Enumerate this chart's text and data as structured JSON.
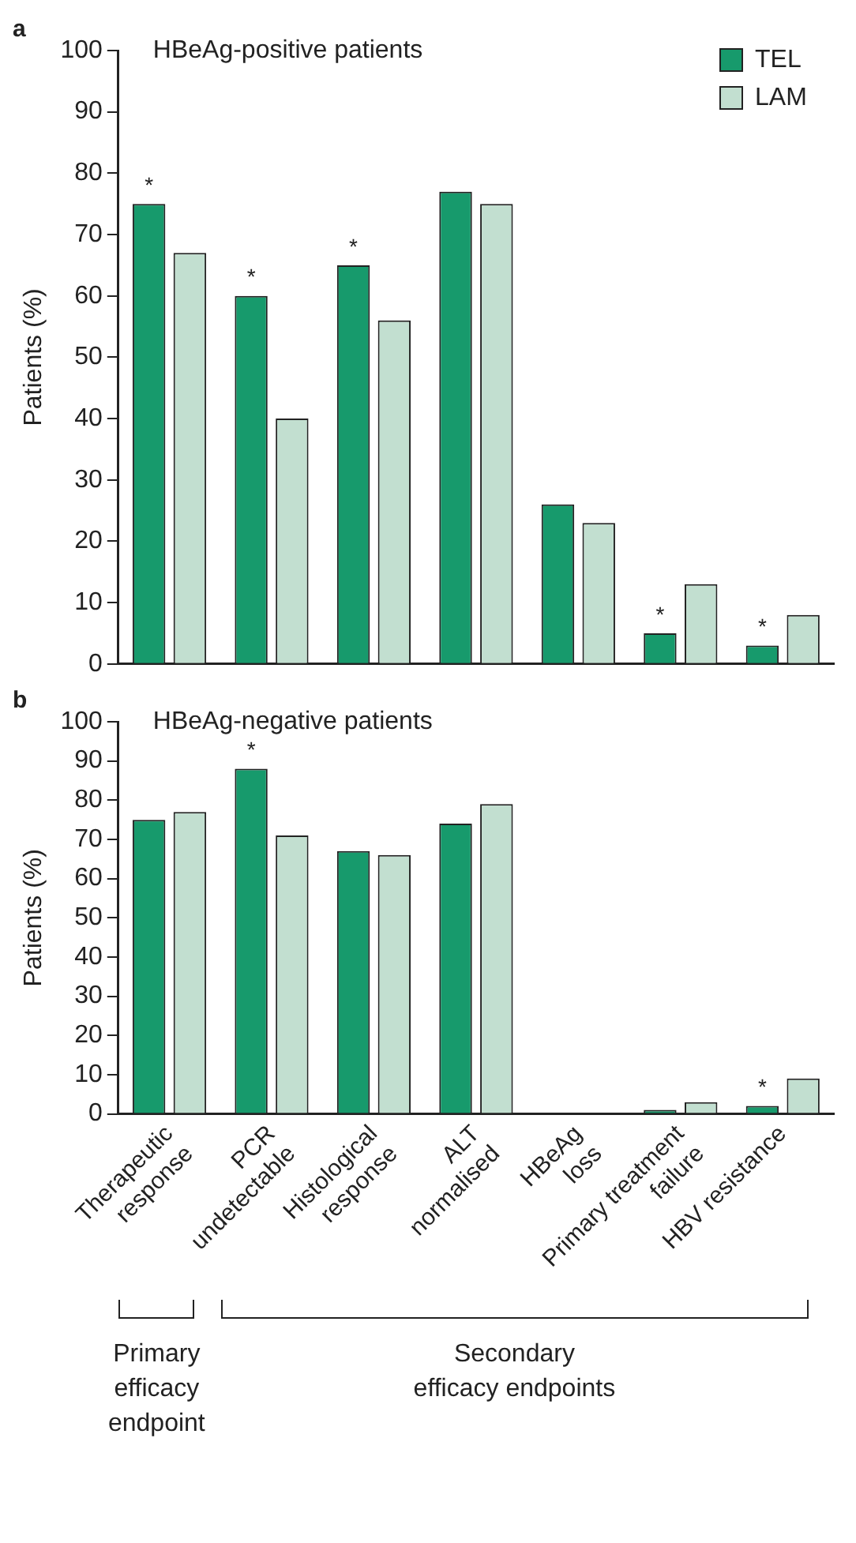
{
  "chart_data": [
    {
      "type": "bar",
      "title": "a",
      "subtitle": "HBeAg-positive patients",
      "ylabel": "Patients (%)",
      "categories": [
        null,
        null,
        null,
        null,
        null,
        null,
        null
      ],
      "series": [
        {
          "name": "TEL",
          "color": "#179a6c",
          "values": [
            75,
            60,
            65,
            77,
            26,
            5,
            3
          ]
        },
        {
          "name": "LAM",
          "color": "#c2dfd0",
          "values": [
            67,
            40,
            56,
            75,
            23,
            13,
            8
          ]
        }
      ],
      "ylim": [
        0,
        100
      ],
      "yticks": [
        0,
        10,
        20,
        30,
        40,
        50,
        60,
        70,
        80,
        90,
        100
      ],
      "grid": false,
      "legend": "top right",
      "tick_labels": "y",
      "annotations": [
        "*",
        "*",
        "*",
        "*",
        "*"
      ]
    },
    {
      "type": "bar",
      "title": "b",
      "subtitle": "HBeAg-negative patients",
      "ylabel": "Patients (%)",
      "categories": [
        "Therapeutic\nresponse",
        "PCR\nundetectable",
        "Histological\nresponse",
        "ALT\nnormalised",
        "HBeAg\nloss",
        "Primary treatment\nfailure",
        "HBV resistance"
      ],
      "series": [
        {
          "color": "#179a6c",
          "values": [
            75,
            88,
            67,
            74,
            null,
            1,
            2
          ]
        },
        {
          "color": "#c2dfd0",
          "values": [
            77,
            71,
            66,
            79,
            null,
            3,
            9
          ]
        }
      ],
      "ylim": [
        0,
        100
      ],
      "yticks": [
        0,
        10,
        20,
        30,
        40,
        50,
        60,
        70,
        80,
        90,
        100
      ],
      "grid": false,
      "legend": false,
      "annotations": [
        "*",
        "*",
        "Primary\nefficacy\nendpoint",
        "Secondary\nefficacy endpoints"
      ]
    }
  ]
}
